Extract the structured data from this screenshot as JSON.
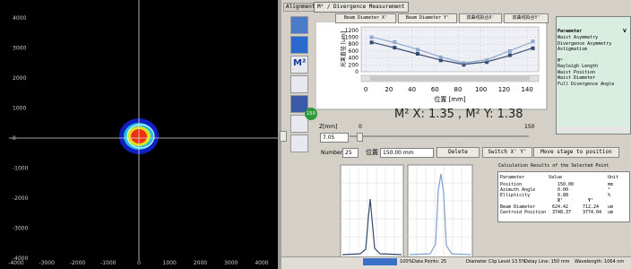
{
  "beam_view": {
    "xticks": [
      -4000,
      -3000,
      -2000,
      -1000,
      0,
      1000,
      2000,
      3000,
      4000
    ],
    "yticks": [
      4000,
      3000,
      2000,
      1000,
      0,
      -1000,
      -2000,
      -3000,
      -4000
    ]
  },
  "tabs": [
    "Alignment",
    "M² / Divergence Measurement"
  ],
  "toolbar": {
    "m2_icon": "M²",
    "badge": "150"
  },
  "chart_data": {
    "type": "line",
    "y_label": "光束直径 [um]",
    "x_label": "位置 [mm]",
    "x": [
      5,
      25,
      45,
      65,
      85,
      105,
      125,
      145
    ],
    "series": [
      {
        "name": "Beam Diameter X'",
        "color": "#34496e",
        "values": [
          850,
          700,
          520,
          330,
          200,
          280,
          480,
          680
        ]
      },
      {
        "name": "Beam Diameter Y'",
        "color": "#8fa8d0",
        "values": [
          1000,
          860,
          640,
          420,
          250,
          330,
          600,
          880
        ]
      },
      {
        "name": "双曲线拟合X'",
        "color": "#34496e",
        "values": [
          860,
          690,
          510,
          340,
          220,
          290,
          470,
          690
        ]
      },
      {
        "name": "双曲线拟合Y'",
        "color": "#8fa8d0",
        "values": [
          1010,
          840,
          650,
          430,
          260,
          350,
          610,
          870
        ]
      }
    ],
    "xlim": [
      -4,
      150
    ],
    "ylim": [
      0,
      1300
    ],
    "xticks": [
      0,
      20,
      40,
      60,
      80,
      100,
      120,
      140
    ],
    "yticks": [
      0,
      200,
      400,
      600,
      800,
      1000,
      1200
    ]
  },
  "result": "M² X: 1.35 , M² Y: 1.38",
  "z_control": {
    "label": "Z[mm]",
    "min": "0",
    "max": "150",
    "value": "7.05"
  },
  "point_bar": {
    "number_label": "Number",
    "number": "25",
    "position_label": "位置",
    "position": "150.00 mm",
    "buttons": [
      "Delete",
      "Switch X' Y'",
      "Move stage to position"
    ]
  },
  "parameter_table": {
    "header": [
      "Parameter",
      "V"
    ],
    "rows": [
      "Waist Asymmetry",
      "Divergence Asymmetry",
      "Astigmatism",
      "M²",
      "Rayleigh Length",
      "Waist Position",
      "Waist Diameter",
      "Full Divergence Angle"
    ]
  },
  "calc": {
    "title": "Calculation Results of the Selected Point",
    "header": [
      "Parameter",
      "Value",
      "Unit"
    ],
    "rows": [
      [
        "Position",
        "150.00",
        "mm"
      ],
      [
        "Azimuth Angle",
        "0.00",
        "°"
      ],
      [
        "Ellipticity",
        "0.88",
        "%"
      ]
    ],
    "sub_header": [
      "X'",
      "Y'"
    ],
    "rows2": [
      [
        "Beam Diameter",
        "624.42",
        "712.24",
        "um"
      ],
      [
        "Centroid Position",
        "3748.37",
        "3774.04",
        "um"
      ]
    ]
  },
  "status": {
    "progress": "100%",
    "items": [
      "Data Points: 25",
      "Diameter Clip Level 13.5%",
      "Delay Line: 150 mm",
      "Wavelength: 1064 nm"
    ]
  }
}
